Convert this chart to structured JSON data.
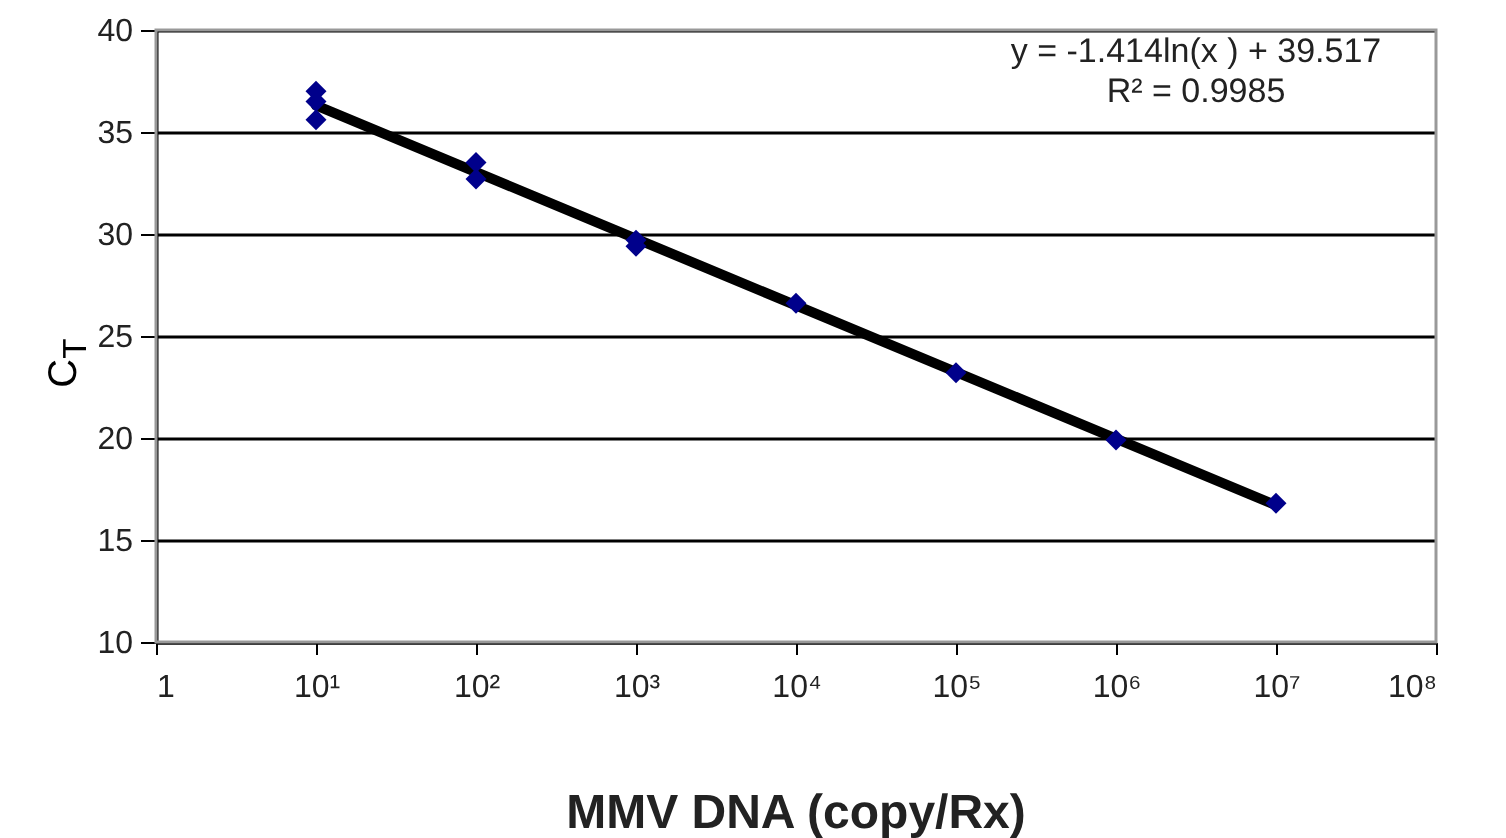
{
  "chart_data": {
    "type": "scatter",
    "xlabel": "MMV DNA (copy/Rx)",
    "ylabel": "C$_{T}$",
    "log": "x",
    "xlim": [
      1,
      100000000
    ],
    "ylim": [
      10,
      40
    ],
    "xticks": [
      1,
      {
        "value": 10,
        "label": "10¹"
      },
      {
        "value": 100,
        "label": "10²"
      },
      {
        "value": 1000,
        "label": "10³"
      },
      {
        "value": 10000,
        "label": "10⁴"
      },
      {
        "value": 100000,
        "label": "10⁵"
      },
      {
        "value": 1000000,
        "label": "10⁶"
      },
      {
        "value": 10000000,
        "label": "10⁷"
      },
      {
        "value": 100000000,
        "label": "10⁸"
      }
    ],
    "yticks": [
      10,
      15,
      20,
      25,
      30,
      35,
      40
    ],
    "grid": "y",
    "series": [
      {
        "type": "line",
        "color": "#000000",
        "x": [
          10,
          10000000
        ],
        "values": [
          36.3,
          16.7
        ]
      },
      {
        "marker": "diamond",
        "color": "#00008b",
        "x": [
          10,
          10,
          10,
          100,
          100,
          1000,
          1000,
          10000,
          100000,
          1000000,
          10000000
        ],
        "values": [
          37.0,
          36.5,
          35.6,
          33.5,
          32.7,
          29.7,
          29.4,
          26.6,
          23.2,
          19.9,
          16.8
        ]
      }
    ],
    "annotations": [
      "y = -1.414ln(x ) + 39.517",
      "R² = 0.9985"
    ]
  }
}
